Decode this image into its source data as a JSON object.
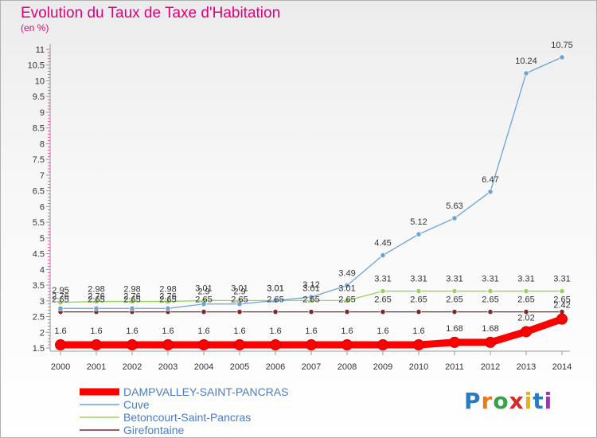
{
  "title": "Evolution du Taux de Taxe d'Habitation",
  "subtitle": "(en %)",
  "logo": {
    "text": "Proxiti",
    "letters": [
      "P",
      "r",
      "o",
      "x",
      "i",
      "t",
      "i"
    ],
    "colors": [
      "#2a7ac0",
      "#e87a1a",
      "#3aa048",
      "#d42a2a",
      "#e8b20a",
      "#2a7ac0",
      "#9a3aa8"
    ]
  },
  "chart_data": {
    "type": "line",
    "x": [
      "2000",
      "2001",
      "2002",
      "2003",
      "2004",
      "2005",
      "2006",
      "2007",
      "2008",
      "2009",
      "2010",
      "2011",
      "2012",
      "2013",
      "2014"
    ],
    "ylim": [
      1.5,
      11
    ],
    "yticks": [
      "1.5",
      "2",
      "2.5",
      "3",
      "3.5",
      "4",
      "4.5",
      "5",
      "5.5",
      "6",
      "6.5",
      "7",
      "7.5",
      "8",
      "8.5",
      "9",
      "9.5",
      "10",
      "10.5",
      "11"
    ],
    "grid": false,
    "legend_position": "bottom-left",
    "series": [
      {
        "name": "DAMPVALLEY-SAINT-PANCRAS",
        "color": "#ff0000",
        "values": [
          1.6,
          1.6,
          1.6,
          1.6,
          1.6,
          1.6,
          1.6,
          1.6,
          1.6,
          1.6,
          1.6,
          1.68,
          1.68,
          2.02,
          2.42
        ],
        "labels": [
          "1.6",
          "1.6",
          "1.6",
          "1.6",
          "1.6",
          "1.6",
          "1.6",
          "1.6",
          "1.6",
          "1.6",
          "1.6",
          "1.68",
          "1.68",
          "2.02",
          "2.42"
        ]
      },
      {
        "name": "Cuve",
        "color": "#6ea3d8",
        "values": [
          2.76,
          2.76,
          2.76,
          2.76,
          2.9,
          2.9,
          3.01,
          3.12,
          3.49,
          4.45,
          5.12,
          5.63,
          6.47,
          10.24,
          10.75
        ],
        "labels": [
          "2.76",
          "2.76",
          "2.76",
          "2.76",
          "2.9",
          "2.9",
          "3.01",
          "3.12",
          "3.49",
          "4.45",
          "5.12",
          "5.63",
          "6.47",
          "10.24",
          "10.75"
        ]
      },
      {
        "name": "Betoncourt-Saint-Pancras",
        "color": "#99d45a",
        "values": [
          2.95,
          2.98,
          2.98,
          2.98,
          3.01,
          3.01,
          3.01,
          3.01,
          3.01,
          3.31,
          3.31,
          3.31,
          3.31,
          3.31,
          3.31
        ],
        "labels": [
          "2.95",
          "2.98",
          "2.98",
          "2.98",
          "3.01",
          "3.01",
          "3.01",
          "3.01",
          "3.01",
          "3.31",
          "3.31",
          "3.31",
          "3.31",
          "3.31",
          "3.31"
        ]
      },
      {
        "name": "Girefontaine",
        "color": "#7a2a2a",
        "values": [
          2.65,
          2.65,
          2.65,
          2.65,
          2.65,
          2.65,
          2.65,
          2.65,
          2.65,
          2.65,
          2.65,
          2.65,
          2.65,
          2.65,
          2.65
        ],
        "labels": [
          "2.65",
          "2.65",
          "2.65",
          "2.65",
          "2.65",
          "2.65",
          "2.65",
          "2.65",
          "2.65",
          "2.65",
          "2.65",
          "2.65",
          "2.65",
          "2.65",
          "2.65"
        ]
      }
    ]
  }
}
